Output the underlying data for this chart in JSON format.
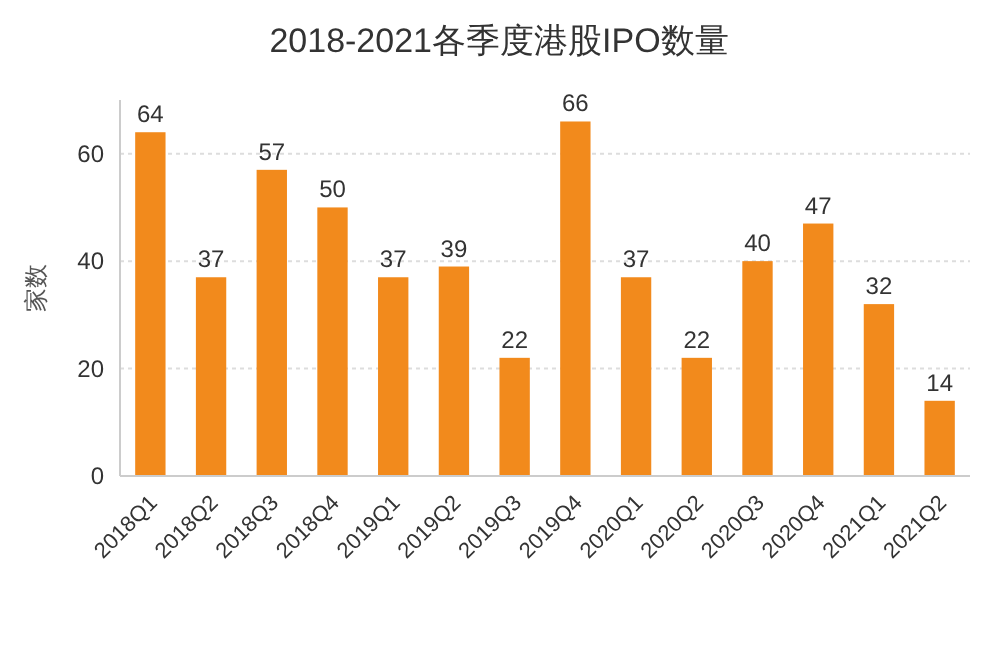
{
  "chart_data": {
    "type": "bar",
    "title": "2018-2021各季度港股IPO数量",
    "ylabel": "家数",
    "categories": [
      "2018Q1",
      "2018Q2",
      "2018Q3",
      "2018Q4",
      "2019Q1",
      "2019Q2",
      "2019Q3",
      "2019Q4",
      "2020Q1",
      "2020Q2",
      "2020Q3",
      "2020Q4",
      "2021Q1",
      "2021Q2"
    ],
    "values": [
      64,
      37,
      57,
      50,
      37,
      39,
      22,
      66,
      37,
      22,
      40,
      47,
      32,
      14
    ],
    "color": "#f28a1c",
    "ylim": [
      0,
      70
    ],
    "yticks": [
      0,
      20,
      40,
      60
    ],
    "grid": "y",
    "data_labels": true
  }
}
